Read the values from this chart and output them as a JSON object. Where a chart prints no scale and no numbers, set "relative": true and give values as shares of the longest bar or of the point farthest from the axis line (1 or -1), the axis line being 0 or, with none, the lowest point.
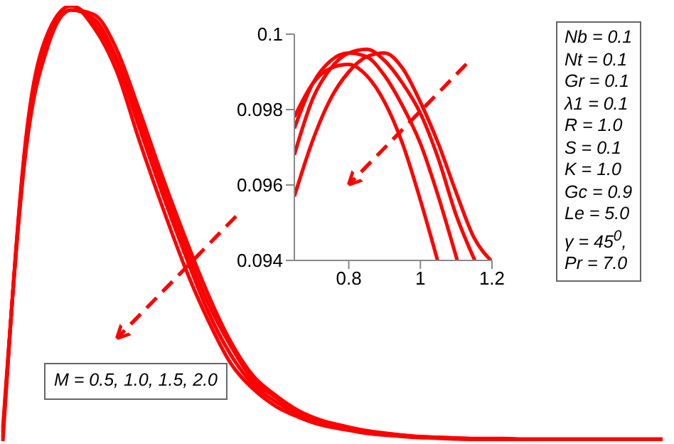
{
  "chart_data": [
    {
      "type": "line",
      "relative": true,
      "tick_labels": false,
      "marker": "none",
      "line_style": "solid",
      "categories": [
        null,
        null,
        null,
        null,
        null,
        null,
        null,
        null,
        null,
        null,
        null,
        null,
        null,
        null,
        null,
        null,
        null,
        null,
        null,
        null,
        null,
        null,
        null,
        null,
        null,
        null,
        null,
        null,
        null,
        null
      ],
      "series": [
        {
          "color": "#ff0000",
          "values": [
            0,
            0.69,
            0.94,
            1.0,
            0.95,
            0.85,
            0.69,
            0.54,
            0.4,
            0.28,
            0.18,
            0.12,
            0.08,
            0.055,
            0.037,
            0.027,
            0.018,
            0.013,
            0.009,
            0.007,
            0.005,
            0.004,
            0.004,
            0.003,
            0.003,
            0.003,
            0.002,
            0.002,
            0.002,
            0.002
          ]
        },
        {
          "color": "#ff0000",
          "values": [
            0.01,
            0.68,
            0.93,
            1.0,
            0.96,
            0.87,
            0.72,
            0.57,
            0.43,
            0.3,
            0.2,
            0.13,
            0.09,
            0.06,
            0.04,
            0.03,
            0.02,
            0.015,
            0.01,
            0.008,
            0.006,
            0.005,
            0.004,
            0.004,
            0.003,
            0.003,
            0.003,
            0.003,
            0.003,
            0.003
          ]
        },
        {
          "color": "#ff0000",
          "values": [
            0.02,
            0.67,
            0.92,
            0.99,
            0.97,
            0.88,
            0.74,
            0.59,
            0.45,
            0.32,
            0.22,
            0.14,
            0.1,
            0.065,
            0.045,
            0.033,
            0.022,
            0.016,
            0.011,
            0.009,
            0.007,
            0.005,
            0.005,
            0.004,
            0.004,
            0.004,
            0.004,
            0.004,
            0.004,
            0.004
          ]
        },
        {
          "color": "#ff0000",
          "values": [
            0.03,
            0.66,
            0.91,
            0.99,
            0.98,
            0.9,
            0.76,
            0.61,
            0.47,
            0.34,
            0.23,
            0.15,
            0.105,
            0.07,
            0.048,
            0.035,
            0.024,
            0.017,
            0.012,
            0.009,
            0.007,
            0.006,
            0.006,
            0.005,
            0.005,
            0.005,
            0.005,
            0.005,
            0.005,
            0.005
          ]
        }
      ],
      "annotations": [
        "M = 0.5, 1.0, 1.5, 2.0",
        "Nb = 0.1",
        "Nt = 0.1",
        "Gr = 0.1",
        "λ1 = 0.1",
        "R = 1.0",
        "S = 0.1",
        "K = 1.0",
        "Gc = 0.9",
        "Le = 5.0",
        "γ = 45$^{0}$,",
        "Pr = 7.0"
      ]
    },
    {
      "type": "line",
      "marker": "none",
      "line_style": "solid",
      "xlim": [
        0.648,
        1.2
      ],
      "ylim": [
        0.094,
        0.1
      ],
      "xticks": [
        0.8,
        1,
        1.2
      ],
      "yticks": [
        0.094,
        0.096,
        0.098,
        0.1
      ],
      "series": [
        {
          "color": "#ff0000",
          "x": [
            0.648,
            0.7,
            0.75,
            0.8,
            0.85,
            0.9,
            0.95,
            1.0,
            1.048
          ],
          "values": [
            0.0978,
            0.0987,
            0.0991,
            0.0992,
            0.0989,
            0.0982,
            0.0971,
            0.0956,
            0.094
          ]
        },
        {
          "color": "#ff0000",
          "x": [
            0.648,
            0.7,
            0.75,
            0.8,
            0.85,
            0.9,
            0.95,
            1.0,
            1.05,
            1.103
          ],
          "values": [
            0.0975,
            0.0987,
            0.0993,
            0.0995,
            0.0994,
            0.0989,
            0.0981,
            0.0971,
            0.0957,
            0.094
          ]
        },
        {
          "color": "#ff0000",
          "x": [
            0.648,
            0.7,
            0.75,
            0.8,
            0.85,
            0.9,
            0.95,
            1.0,
            1.05,
            1.1,
            1.152
          ],
          "values": [
            0.0968,
            0.0983,
            0.0991,
            0.0995,
            0.0996,
            0.0993,
            0.0987,
            0.0979,
            0.0967,
            0.0952,
            0.094
          ]
        },
        {
          "color": "#ff0000",
          "x": [
            0.648,
            0.7,
            0.75,
            0.8,
            0.85,
            0.9,
            0.95,
            1.0,
            1.05,
            1.1,
            1.15,
            1.197
          ],
          "values": [
            0.0957,
            0.0972,
            0.0983,
            0.099,
            0.0994,
            0.0995,
            0.0991,
            0.0982,
            0.0971,
            0.0958,
            0.0946,
            0.094
          ]
        }
      ]
    }
  ]
}
